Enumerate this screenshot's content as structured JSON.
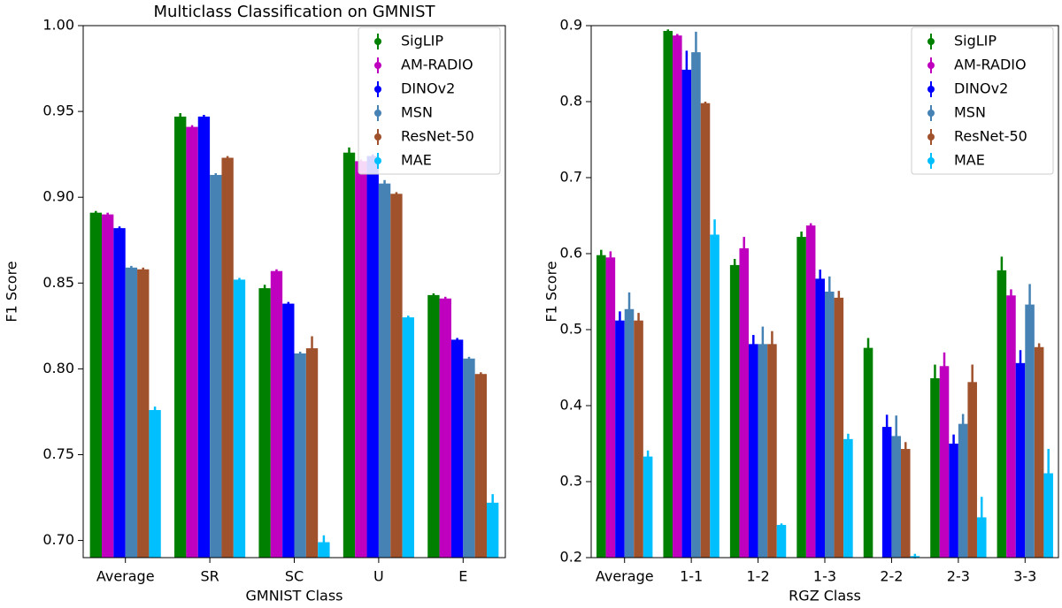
{
  "chart_data": [
    {
      "type": "bar",
      "title": "Multiclass Classification on GMNIST",
      "x_label": "GMNIST Class",
      "y_label": "F1 Score",
      "categories": [
        "Average",
        "SR",
        "SC",
        "U",
        "E"
      ],
      "ylim": [
        0.69,
        1.0
      ],
      "yticks": [
        {
          "value": 0.7,
          "label": "0.70"
        },
        {
          "value": 0.75,
          "label": "0.75"
        },
        {
          "value": 0.8,
          "label": "0.80"
        },
        {
          "value": 0.85,
          "label": "0.85"
        },
        {
          "value": 0.9,
          "label": "0.90"
        },
        {
          "value": 0.95,
          "label": "0.95"
        },
        {
          "value": 1.0,
          "label": "1.00"
        }
      ],
      "legend": "upper right",
      "series": [
        {
          "name": "SigLIP",
          "color": "#008000",
          "values": [
            0.891,
            0.947,
            0.847,
            0.926,
            0.843
          ],
          "errors": [
            0.001,
            0.002,
            0.002,
            0.003,
            0.001
          ]
        },
        {
          "name": "AM-RADIO",
          "color": "#bf00bf",
          "values": [
            0.89,
            0.941,
            0.857,
            0.921,
            0.841
          ],
          "errors": [
            0.001,
            0.001,
            0.001,
            0.001,
            0.001
          ]
        },
        {
          "name": "DINOv2",
          "color": "#0000ff",
          "values": [
            0.882,
            0.947,
            0.838,
            0.924,
            0.817
          ],
          "errors": [
            0.001,
            0.001,
            0.001,
            0.001,
            0.001
          ]
        },
        {
          "name": "MSN",
          "color": "#4682b4",
          "values": [
            0.859,
            0.913,
            0.809,
            0.908,
            0.806
          ],
          "errors": [
            0.001,
            0.001,
            0.001,
            0.002,
            0.001
          ]
        },
        {
          "name": "ResNet-50",
          "color": "#a0522d",
          "values": [
            0.858,
            0.923,
            0.812,
            0.902,
            0.797
          ],
          "errors": [
            0.001,
            0.001,
            0.007,
            0.001,
            0.001
          ]
        },
        {
          "name": "MAE",
          "color": "#00bfff",
          "values": [
            0.776,
            0.852,
            0.699,
            0.83,
            0.722
          ],
          "errors": [
            0.002,
            0.001,
            0.004,
            0.001,
            0.005
          ]
        }
      ]
    },
    {
      "type": "bar",
      "x_label": "RGZ Class",
      "y_label": "F1 Score",
      "categories": [
        "Average",
        "1-1",
        "1-2",
        "1-3",
        "2-2",
        "2-3",
        "3-3"
      ],
      "ylim": [
        0.2,
        0.9
      ],
      "yticks": [
        0.2,
        0.3,
        0.4,
        0.5,
        0.6,
        0.7,
        0.8,
        0.9
      ],
      "legend": "upper right",
      "series": [
        {
          "name": "SigLIP",
          "color": "#008000",
          "values": [
            0.598,
            0.893,
            0.585,
            0.622,
            0.476,
            0.436,
            0.578
          ],
          "errors": [
            0.007,
            0.002,
            0.008,
            0.007,
            0.013,
            0.018,
            0.018
          ]
        },
        {
          "name": "AM-RADIO",
          "color": "#bf00bf",
          "values": [
            0.595,
            0.887,
            0.607,
            0.637,
            null,
            0.452,
            0.545
          ],
          "errors": [
            0.008,
            0.002,
            0.015,
            0.003,
            null,
            0.018,
            0.008
          ]
        },
        {
          "name": "DINOv2",
          "color": "#0000ff",
          "values": [
            0.512,
            0.842,
            0.481,
            0.567,
            0.372,
            0.35,
            0.456
          ],
          "errors": [
            0.012,
            0.025,
            0.012,
            0.012,
            0.016,
            0.012,
            0.017
          ]
        },
        {
          "name": "MSN",
          "color": "#4682b4",
          "values": [
            0.527,
            0.865,
            0.481,
            0.55,
            0.36,
            0.376,
            0.533
          ],
          "errors": [
            0.022,
            0.027,
            0.023,
            0.02,
            0.027,
            0.013,
            0.027
          ]
        },
        {
          "name": "ResNet-50",
          "color": "#a0522d",
          "values": [
            0.512,
            0.798,
            0.481,
            0.542,
            0.343,
            0.431,
            0.477
          ],
          "errors": [
            0.01,
            0.002,
            0.017,
            0.009,
            0.009,
            0.023,
            0.005
          ]
        },
        {
          "name": "MAE",
          "color": "#00bfff",
          "values": [
            0.333,
            0.625,
            0.243,
            0.356,
            0.202,
            0.253,
            0.311
          ],
          "errors": [
            0.008,
            0.02,
            0.002,
            0.007,
            0.003,
            0.027,
            0.032
          ]
        }
      ]
    }
  ]
}
